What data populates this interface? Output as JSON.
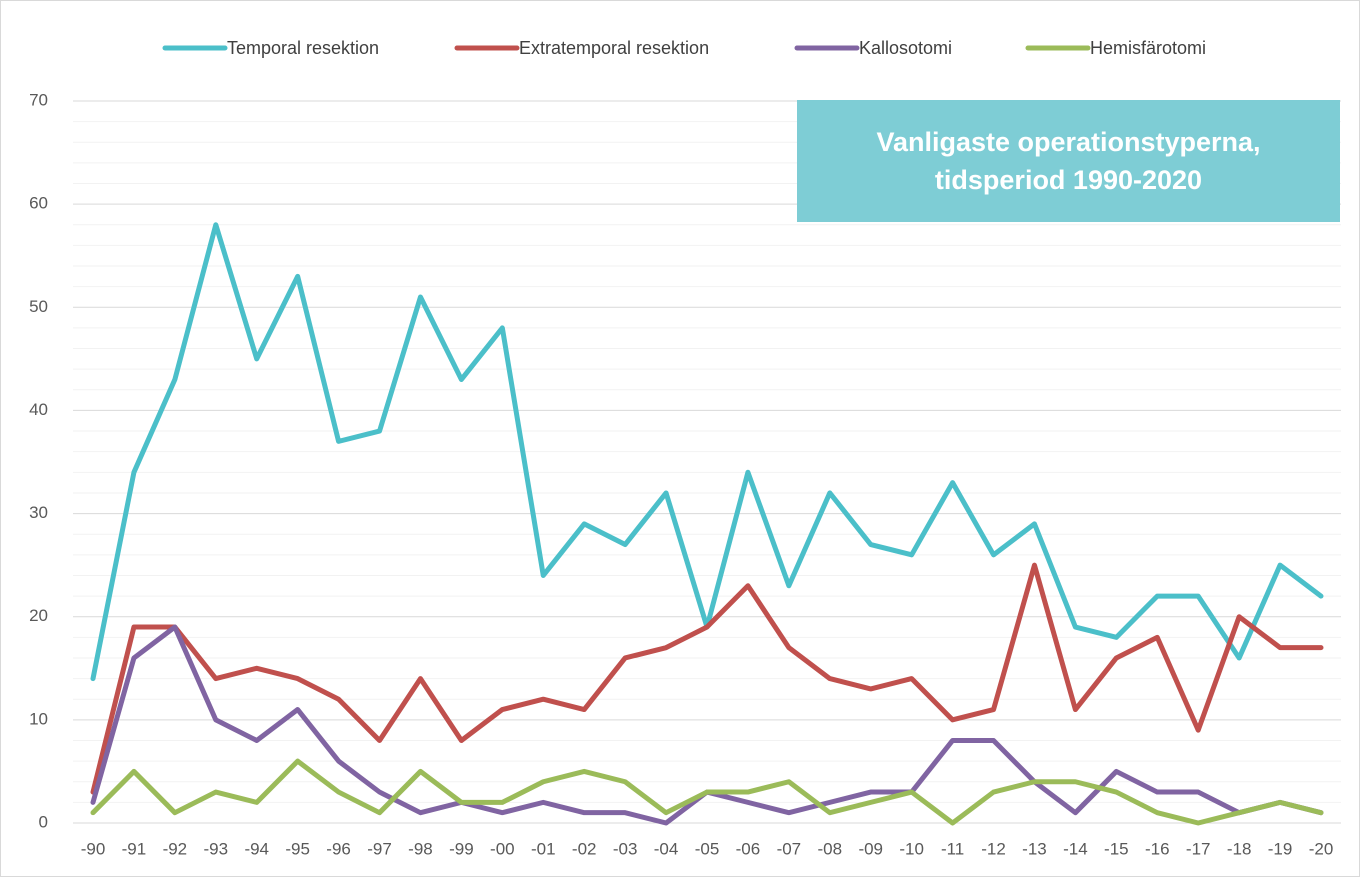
{
  "chart_data": {
    "type": "line",
    "title": "Vanligaste operationstyperna, tidsperiod 1990-2020",
    "categories": [
      "-90",
      "-91",
      "-92",
      "-93",
      "-94",
      "-95",
      "-96",
      "-97",
      "-98",
      "-99",
      "-00",
      "-01",
      "-02",
      "-03",
      "-04",
      "-05",
      "-06",
      "-07",
      "-08",
      "-09",
      "-10",
      "-11",
      "-12",
      "-13",
      "-14",
      "-15",
      "-16",
      "-17",
      "-18",
      "-19",
      "-20"
    ],
    "series": [
      {
        "name": "Temporal resektion",
        "color": "#4bbfc9",
        "values": [
          14,
          34,
          43,
          58,
          45,
          53,
          37,
          38,
          51,
          43,
          48,
          24,
          29,
          27,
          32,
          19,
          34,
          23,
          32,
          27,
          26,
          33,
          26,
          29,
          19,
          18,
          22,
          22,
          16,
          25,
          22
        ]
      },
      {
        "name": "Extratemporal resektion",
        "color": "#c0504d",
        "values": [
          3,
          19,
          19,
          14,
          15,
          14,
          12,
          8,
          14,
          8,
          11,
          12,
          11,
          16,
          17,
          19,
          23,
          17,
          14,
          13,
          14,
          10,
          11,
          25,
          11,
          16,
          18,
          9,
          20,
          17,
          17
        ]
      },
      {
        "name": "Kallosotomi",
        "color": "#8064a2",
        "values": [
          2,
          16,
          19,
          10,
          8,
          11,
          6,
          3,
          1,
          2,
          1,
          2,
          1,
          1,
          0,
          3,
          2,
          1,
          2,
          3,
          3,
          8,
          8,
          4,
          1,
          5,
          3,
          3,
          1,
          2,
          1
        ]
      },
      {
        "name": "Hemisfärotomi",
        "color": "#9bbb59",
        "values": [
          1,
          5,
          1,
          3,
          2,
          6,
          3,
          1,
          5,
          2,
          2,
          4,
          5,
          4,
          1,
          3,
          3,
          4,
          1,
          2,
          3,
          0,
          3,
          4,
          4,
          3,
          1,
          0,
          1,
          2,
          1
        ]
      }
    ],
    "ylim": [
      0,
      70
    ],
    "yticks": [
      0,
      10,
      20,
      30,
      40,
      50,
      60,
      70
    ],
    "minor_yticks": [
      2,
      4,
      6,
      8,
      12,
      14,
      16,
      18,
      22,
      24,
      26,
      28,
      32,
      34,
      36,
      38,
      42,
      44,
      46,
      48,
      52,
      54,
      56,
      58,
      62,
      64,
      66,
      68
    ],
    "grid": true,
    "legend": "top"
  }
}
